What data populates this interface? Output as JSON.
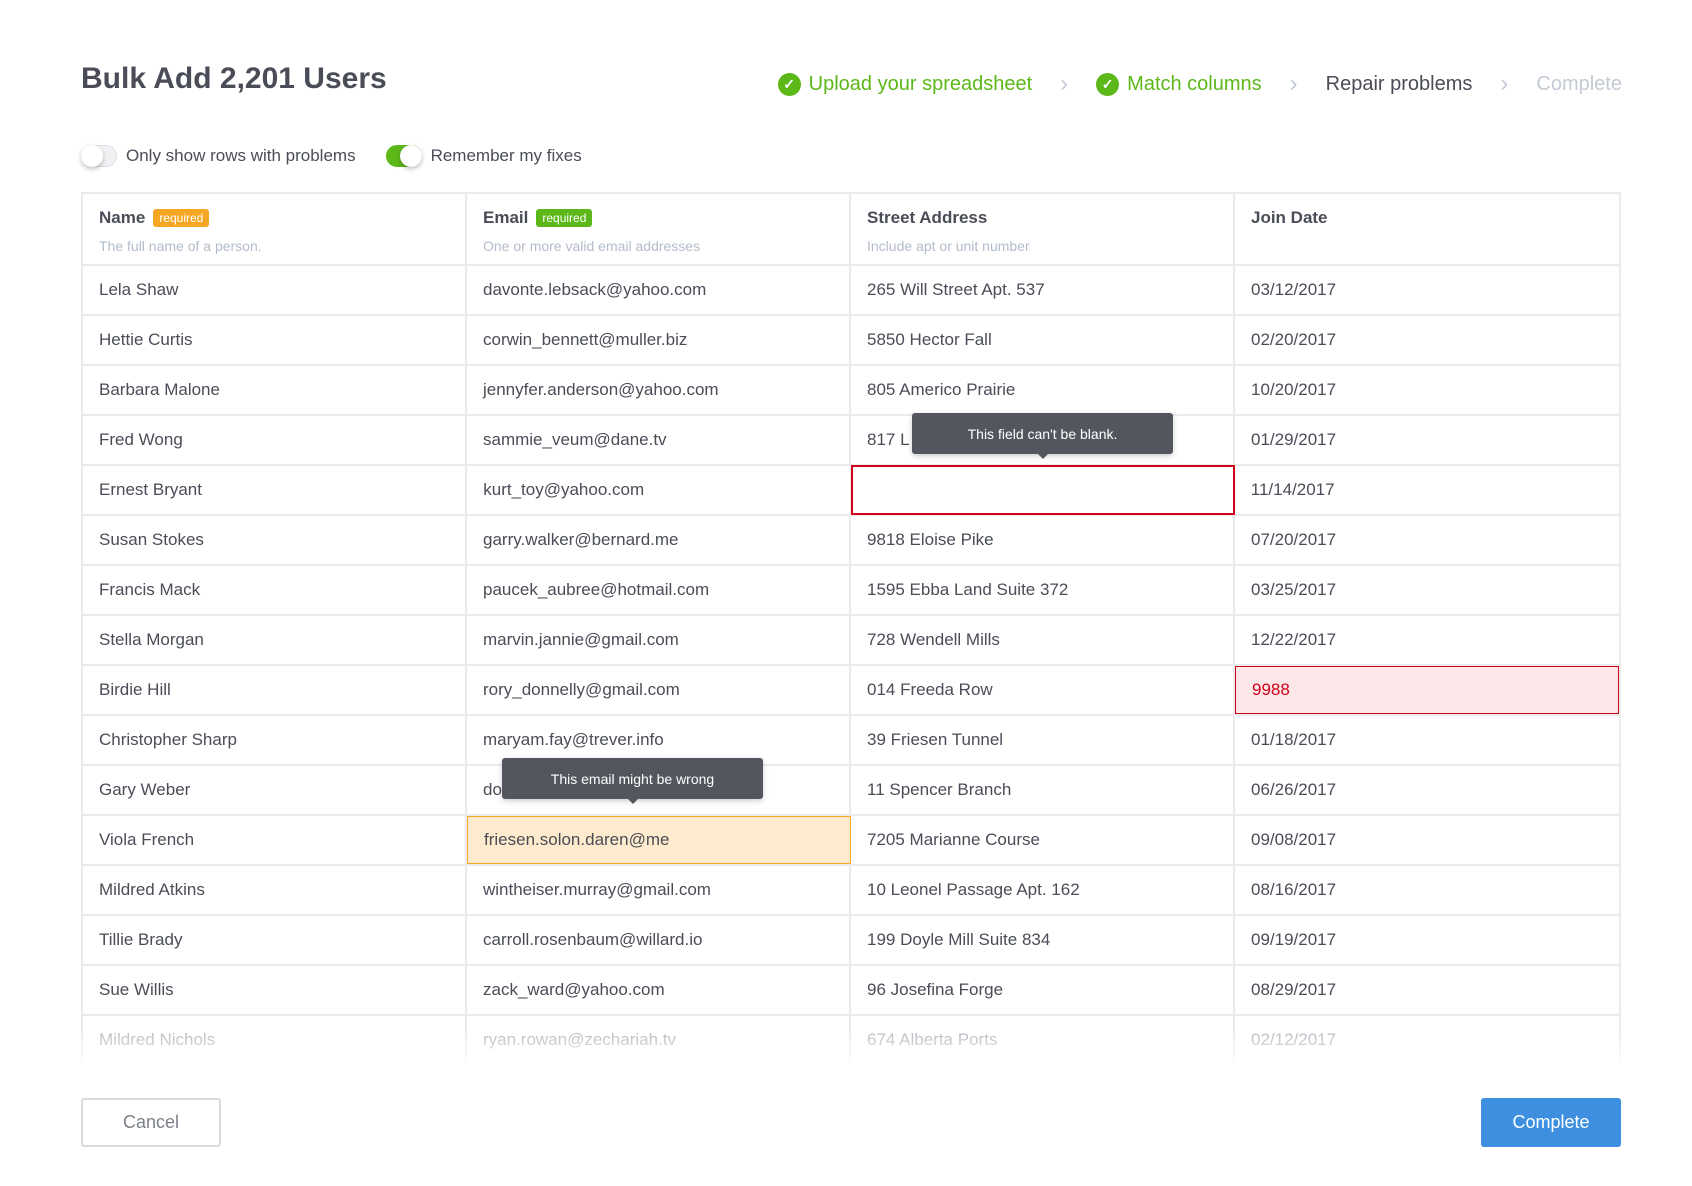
{
  "title": "Bulk Add 2,201 Users",
  "steps": [
    {
      "label": "Upload your spreadsheet",
      "state": "done"
    },
    {
      "label": "Match columns",
      "state": "done"
    },
    {
      "label": "Repair problems",
      "state": "current"
    },
    {
      "label": "Complete",
      "state": "todo"
    }
  ],
  "toggles": [
    {
      "label": "Only show rows with problems",
      "on": false
    },
    {
      "label": "Remember my fixes",
      "on": true
    }
  ],
  "columns": [
    {
      "name": "Name",
      "badge": "required",
      "badge_color": "#f5a623",
      "desc": "The full name of a person."
    },
    {
      "name": "Email",
      "badge": "required",
      "badge_color": "#5cb819",
      "desc": "One or more valid email addresses"
    },
    {
      "name": "Street Address",
      "badge": "",
      "desc": "Include apt or unit number"
    },
    {
      "name": "Join Date",
      "badge": "",
      "desc": ""
    }
  ],
  "rows": [
    [
      "Lela Shaw",
      "davonte.lebsack@yahoo.com",
      "265 Will Street Apt. 537",
      "03/12/2017"
    ],
    [
      "Hettie Curtis",
      "corwin_bennett@muller.biz",
      "5850 Hector Fall",
      "02/20/2017"
    ],
    [
      "Barbara Malone",
      "jennyfer.anderson@yahoo.com",
      "805 Americo Prairie",
      "10/20/2017"
    ],
    [
      "Fred Wong",
      "sammie_veum@dane.tv",
      "817 L",
      "01/29/2017"
    ],
    [
      "Ernest Bryant",
      "kurt_toy@yahoo.com",
      "",
      "11/14/2017"
    ],
    [
      "Susan Stokes",
      "garry.walker@bernard.me",
      "9818 Eloise Pike",
      "07/20/2017"
    ],
    [
      "Francis Mack",
      "paucek_aubree@hotmail.com",
      "1595 Ebba Land Suite 372",
      "03/25/2017"
    ],
    [
      "Stella Morgan",
      "marvin.jannie@gmail.com",
      "728 Wendell Mills",
      "12/22/2017"
    ],
    [
      "Birdie Hill",
      "rory_donnelly@gmail.com",
      "014 Freeda Row",
      "9988"
    ],
    [
      "Christopher Sharp",
      "maryam.fay@trever.info",
      "39 Friesen Tunnel",
      "01/18/2017"
    ],
    [
      "Gary Weber",
      "do",
      "11 Spencer Branch",
      "06/26/2017"
    ],
    [
      "Viola French",
      "friesen.solon.daren@me",
      "7205 Marianne Course",
      "09/08/2017"
    ],
    [
      "Mildred Atkins",
      "wintheiser.murray@gmail.com",
      "10 Leonel Passage Apt. 162",
      "08/16/2017"
    ],
    [
      "Tillie Brady",
      "carroll.rosenbaum@willard.io",
      "199 Doyle Mill Suite 834",
      "09/19/2017"
    ],
    [
      "Sue Willis",
      "zack_ward@yahoo.com",
      "96 Josefina Forge",
      "08/29/2017"
    ],
    [
      "Mildred Nichols",
      "ryan.rowan@zechariah.tv",
      "674 Alberta Ports",
      "02/12/2017"
    ]
  ],
  "cell_states": [
    {
      "row": 4,
      "col": 2,
      "state": "blank"
    },
    {
      "row": 8,
      "col": 3,
      "state": "err"
    },
    {
      "row": 11,
      "col": 1,
      "state": "warn"
    }
  ],
  "tooltips": {
    "blank": "This field can't be blank.",
    "email": "This email might be wrong"
  },
  "buttons": {
    "cancel": "Cancel",
    "complete": "Complete"
  }
}
